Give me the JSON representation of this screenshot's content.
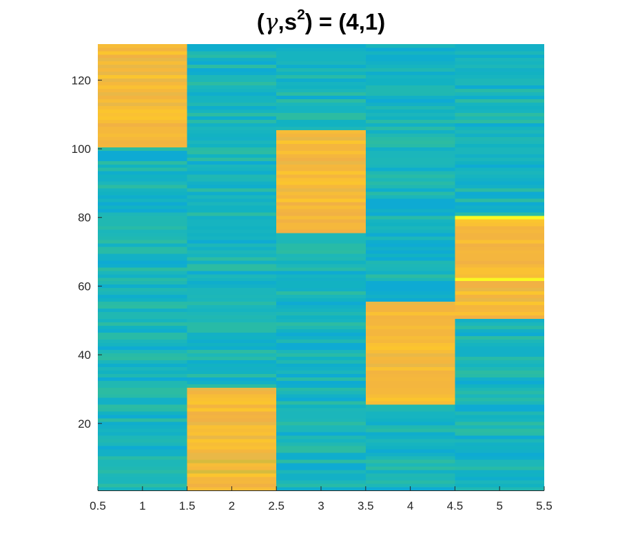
{
  "chart_data": {
    "type": "heatmap",
    "title": {
      "prefix": "(",
      "symbol": "γ",
      "mid": ",s",
      "superscript": "2",
      "suffix": ") = (4,1)"
    },
    "xlabel": "",
    "ylabel": "",
    "xlim": [
      0.5,
      5.5
    ],
    "ylim": [
      0.5,
      130.5
    ],
    "x_ticks": [
      "0.5",
      "1",
      "1.5",
      "2",
      "2.5",
      "3",
      "3.5",
      "4",
      "4.5",
      "5",
      "5.5"
    ],
    "x_tick_values": [
      0.5,
      1,
      1.5,
      2,
      2.5,
      3,
      3.5,
      4,
      4.5,
      5,
      5.5
    ],
    "y_ticks": [
      "20",
      "40",
      "60",
      "80",
      "100",
      "120"
    ],
    "y_tick_values": [
      20,
      40,
      60,
      80,
      100,
      120
    ],
    "columns": [
      1,
      2,
      3,
      4,
      5
    ],
    "rows": 130,
    "high_blocks": [
      {
        "column": 1,
        "rows": [
          101,
          130
        ]
      },
      {
        "column": 2,
        "rows": [
          1,
          30
        ]
      },
      {
        "column": 3,
        "rows": [
          76,
          105
        ]
      },
      {
        "column": 4,
        "rows": [
          26,
          55
        ]
      },
      {
        "column": 5,
        "rows": [
          51,
          80
        ]
      }
    ],
    "colormap": "parula",
    "colors": {
      "low": "#16b4c0",
      "high": "#f5b83c",
      "highlight": "#f9f823"
    },
    "grid": false
  }
}
